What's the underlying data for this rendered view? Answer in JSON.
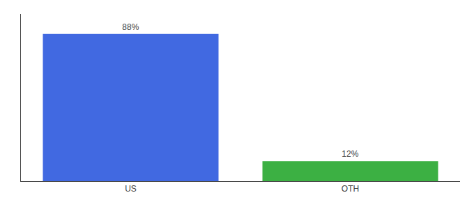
{
  "chart_data": {
    "type": "bar",
    "categories": [
      "US",
      "OTH"
    ],
    "values": [
      88,
      12
    ],
    "value_labels": [
      "88%",
      "12%"
    ],
    "colors": [
      "#4169e1",
      "#3cb043"
    ],
    "ylim": [
      0,
      100
    ],
    "grid": false,
    "data_labels": true,
    "tick_labels": "x"
  }
}
